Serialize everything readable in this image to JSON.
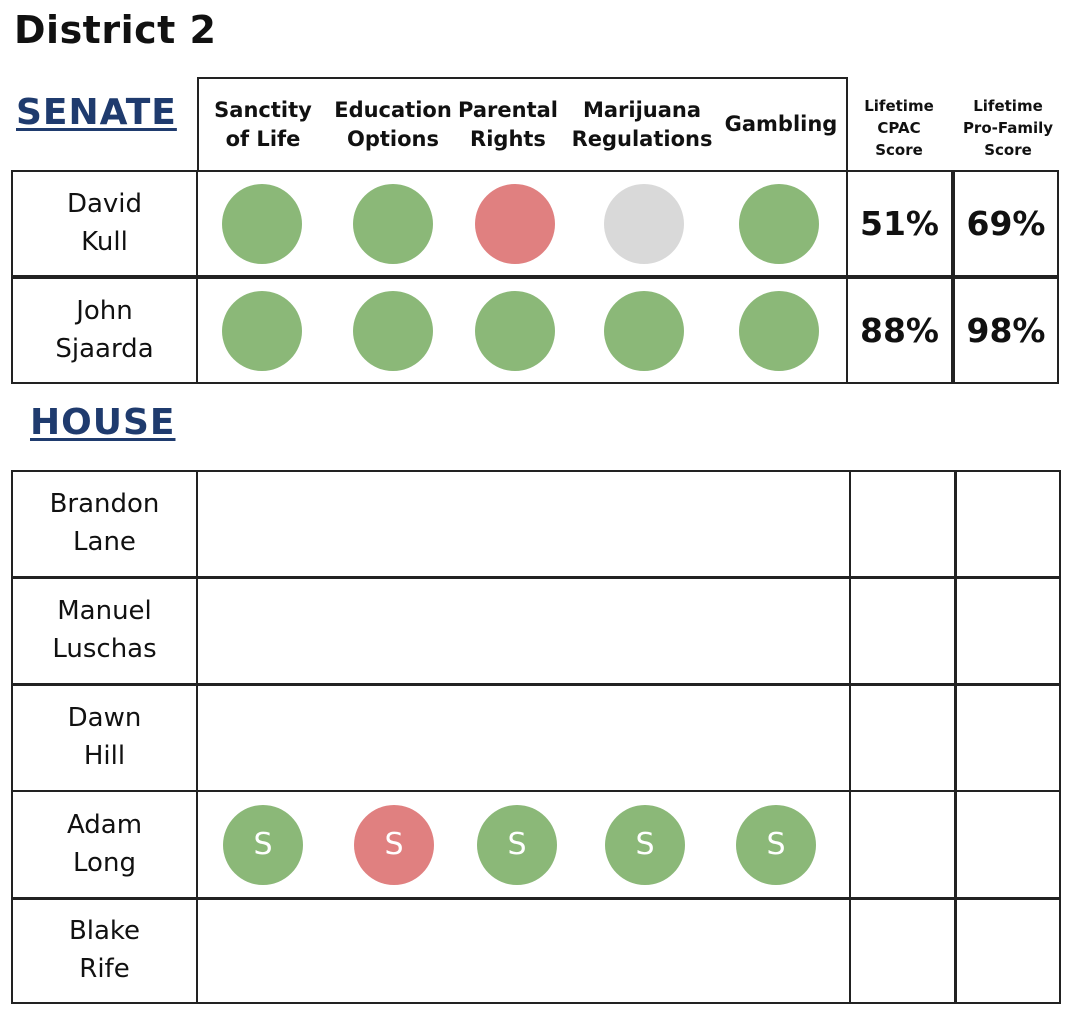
{
  "title": "District 2",
  "colors": {
    "support": "#8bb878",
    "oppose": "#e08080",
    "neutral": "#d9d9d9",
    "heading": "#1f3b6e"
  },
  "senate": {
    "heading": "SENATE",
    "issues": [
      "Sanctity\nof Life",
      "Education\nOptions",
      "Parental\nRights",
      "Marijuana\nRegulations",
      "Gambling"
    ],
    "score_headers": [
      "Lifetime\nCPAC\nScore",
      "Lifetime\nPro-Family\nScore"
    ],
    "candidates": [
      {
        "name": "David\nKull",
        "positions": [
          "support",
          "support",
          "oppose",
          "neutral",
          "support"
        ],
        "cpac": "51%",
        "pro_family": "69%"
      },
      {
        "name": "John\nSjaarda",
        "positions": [
          "support",
          "support",
          "support",
          "support",
          "support"
        ],
        "cpac": "88%",
        "pro_family": "98%"
      }
    ]
  },
  "house": {
    "heading": "HOUSE",
    "candidates": [
      {
        "name": "Brandon\nLane",
        "positions": []
      },
      {
        "name": "Manuel\nLuschas",
        "positions": []
      },
      {
        "name": "Dawn\nHill",
        "positions": []
      },
      {
        "name": "Adam\nLong",
        "positions": [
          "support",
          "oppose",
          "support",
          "support",
          "support"
        ],
        "marker": "S"
      },
      {
        "name": "Blake\nRife",
        "positions": []
      }
    ]
  }
}
